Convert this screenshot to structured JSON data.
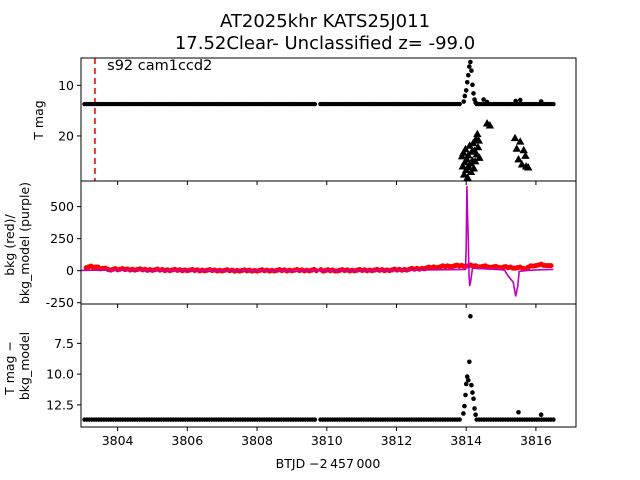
{
  "figure": {
    "title_line1": "AT2025khr  KATS25J011",
    "title_line2": "17.52Clear- Unclassified z= -99.0",
    "xlabel": "BTJD −2 457 000"
  },
  "chart_data": [
    {
      "type": "scatter",
      "panel": "top",
      "ylabel": "T mag",
      "annotation": "s92 cam1ccd2",
      "xlim": [
        3802.95,
        3817.15
      ],
      "ylim": [
        28.9,
        4.6
      ],
      "y_inverted": true,
      "xticks": [
        3804,
        3806,
        3808,
        3810,
        3812,
        3814,
        3816
      ],
      "yticks": [
        10,
        20
      ],
      "vline": {
        "x": 3803.35,
        "color": "#ff0000",
        "style": "dashed"
      },
      "series": [
        {
          "marker": "circle",
          "color": "#000000",
          "segments": [
            {
              "x_start": 3803.05,
              "x_end": 3809.72,
              "y": 13.7
            },
            {
              "x_start": 3809.82,
              "x_end": 3813.82,
              "y": 13.7
            },
            {
              "x_start": 3814.3,
              "x_end": 3816.55,
              "y": 13.7
            }
          ],
          "points": [
            [
              3813.93,
              13.2
            ],
            [
              3813.96,
              12.1
            ],
            [
              3814.0,
              11.0
            ],
            [
              3814.03,
              9.4
            ],
            [
              3814.06,
              8.0
            ],
            [
              3814.09,
              6.3
            ],
            [
              3814.12,
              5.4
            ],
            [
              3814.15,
              7.1
            ],
            [
              3814.18,
              9.9
            ],
            [
              3814.21,
              11.6
            ],
            [
              3814.24,
              12.8
            ],
            [
              3814.27,
              13.4
            ],
            [
              3814.5,
              12.8
            ],
            [
              3814.6,
              13.3
            ],
            [
              3815.42,
              13.1
            ],
            [
              3815.55,
              12.9
            ],
            [
              3816.15,
              13.2
            ]
          ]
        },
        {
          "marker": "triangle",
          "color": "#000000",
          "points": [
            [
              3813.88,
              24.0
            ],
            [
              3813.9,
              26.0
            ],
            [
              3813.92,
              23.3
            ],
            [
              3813.94,
              27.6
            ],
            [
              3813.96,
              25.2
            ],
            [
              3813.98,
              22.6
            ],
            [
              3814.0,
              26.7
            ],
            [
              3814.02,
              24.6
            ],
            [
              3814.04,
              28.2
            ],
            [
              3814.06,
              23.8
            ],
            [
              3814.08,
              26.1
            ],
            [
              3814.1,
              21.9
            ],
            [
              3814.12,
              25.4
            ],
            [
              3814.14,
              27.1
            ],
            [
              3814.16,
              23.1
            ],
            [
              3814.18,
              24.9
            ],
            [
              3814.2,
              21.4
            ],
            [
              3814.22,
              26.4
            ],
            [
              3814.24,
              22.9
            ],
            [
              3814.26,
              25.0
            ],
            [
              3814.28,
              20.6
            ],
            [
              3814.3,
              23.6
            ],
            [
              3814.32,
              19.6
            ],
            [
              3814.34,
              22.2
            ],
            [
              3814.36,
              20.9
            ],
            [
              3814.38,
              24.3
            ],
            [
              3814.6,
              17.5
            ],
            [
              3814.68,
              17.9
            ],
            [
              3815.4,
              20.4
            ],
            [
              3815.45,
              22.5
            ],
            [
              3815.5,
              24.6
            ],
            [
              3815.55,
              21.1
            ],
            [
              3815.6,
              25.6
            ],
            [
              3815.65,
              22.8
            ],
            [
              3815.7,
              23.9
            ],
            [
              3815.72,
              26.0
            ],
            [
              3815.78,
              26.2
            ]
          ]
        }
      ]
    },
    {
      "type": "line",
      "panel": "middle",
      "ylabel_line1": "bkg (red)/",
      "ylabel_line2": "bkg_model (purple)",
      "xlim": [
        3802.95,
        3817.15
      ],
      "ylim": [
        -260,
        700
      ],
      "yticks": [
        -250,
        0,
        250,
        500
      ],
      "series": [
        {
          "name": "bkg",
          "marker": "circle",
          "color": "#ff0000",
          "points": [
            [
              3803.1,
              28
            ],
            [
              3803.3,
              32
            ],
            [
              3803.5,
              20
            ],
            [
              3803.8,
              10
            ],
            [
              3804.0,
              12
            ],
            [
              3804.5,
              10
            ],
            [
              3805.0,
              8
            ],
            [
              3805.5,
              6
            ],
            [
              3806.0,
              5
            ],
            [
              3806.5,
              4
            ],
            [
              3807.0,
              3
            ],
            [
              3807.5,
              2
            ],
            [
              3808.0,
              2
            ],
            [
              3808.5,
              3
            ],
            [
              3809.0,
              4
            ],
            [
              3809.5,
              4
            ],
            [
              3809.7,
              5
            ],
            [
              3809.9,
              2
            ],
            [
              3810.3,
              3
            ],
            [
              3810.8,
              4
            ],
            [
              3811.3,
              5
            ],
            [
              3811.8,
              6
            ],
            [
              3812.3,
              10
            ],
            [
              3812.8,
              20
            ],
            [
              3813.2,
              30
            ],
            [
              3813.6,
              38
            ],
            [
              3814.0,
              40
            ],
            [
              3814.4,
              35
            ],
            [
              3814.7,
              30
            ],
            [
              3815.0,
              28
            ],
            [
              3815.4,
              25
            ],
            [
              3815.7,
              20
            ],
            [
              3816.0,
              45
            ],
            [
              3816.3,
              45
            ],
            [
              3816.5,
              30
            ]
          ]
        },
        {
          "name": "bkg_model",
          "color": "#bf00bf",
          "points": [
            [
              3802.95,
              2
            ],
            [
              3803.5,
              5
            ],
            [
              3804.5,
              4
            ],
            [
              3805.5,
              2
            ],
            [
              3806.5,
              1
            ],
            [
              3807.5,
              1
            ],
            [
              3808.5,
              1
            ],
            [
              3809.7,
              1
            ],
            [
              3810.5,
              1
            ],
            [
              3811.5,
              2
            ],
            [
              3812.5,
              5
            ],
            [
              3813.5,
              8
            ],
            [
              3813.98,
              10
            ],
            [
              3814.0,
              180
            ],
            [
              3814.02,
              660
            ],
            [
              3814.04,
              420
            ],
            [
              3814.06,
              250
            ],
            [
              3814.08,
              -20
            ],
            [
              3814.1,
              -120
            ],
            [
              3814.13,
              -80
            ],
            [
              3814.18,
              20
            ],
            [
              3814.5,
              15
            ],
            [
              3814.9,
              10
            ],
            [
              3815.1,
              5
            ],
            [
              3815.2,
              -40
            ],
            [
              3815.35,
              -90
            ],
            [
              3815.42,
              -200
            ],
            [
              3815.48,
              -120
            ],
            [
              3815.52,
              -5
            ],
            [
              3815.8,
              3
            ],
            [
              3816.2,
              8
            ],
            [
              3816.5,
              10
            ]
          ]
        }
      ]
    },
    {
      "type": "scatter",
      "panel": "bottom",
      "ylabel_line1": "T mag −",
      "ylabel_line2": "bkg_model",
      "xlim": [
        3802.95,
        3817.15
      ],
      "ylim": [
        14.3,
        4.3
      ],
      "y_inverted": true,
      "yticks": [
        7.5,
        10.0,
        12.5
      ],
      "series": [
        {
          "marker": "circle",
          "color": "#000000",
          "segments": [
            {
              "x_start": 3803.05,
              "x_end": 3809.72,
              "y": 13.7
            },
            {
              "x_start": 3809.82,
              "x_end": 3813.85,
              "y": 13.7
            },
            {
              "x_start": 3814.3,
              "x_end": 3816.55,
              "y": 13.7
            }
          ],
          "points": [
            [
              3813.92,
              13.2
            ],
            [
              3813.95,
              12.6
            ],
            [
              3813.98,
              11.7
            ],
            [
              3814.0,
              10.8
            ],
            [
              3814.03,
              10.2
            ],
            [
              3814.06,
              10.5
            ],
            [
              3814.09,
              9.0
            ],
            [
              3814.12,
              5.3
            ],
            [
              3814.15,
              10.9
            ],
            [
              3814.18,
              11.5
            ],
            [
              3814.21,
              12.0
            ],
            [
              3814.24,
              12.8
            ],
            [
              3814.27,
              13.3
            ],
            [
              3815.5,
              13.1
            ],
            [
              3816.15,
              13.3
            ]
          ]
        }
      ]
    }
  ]
}
